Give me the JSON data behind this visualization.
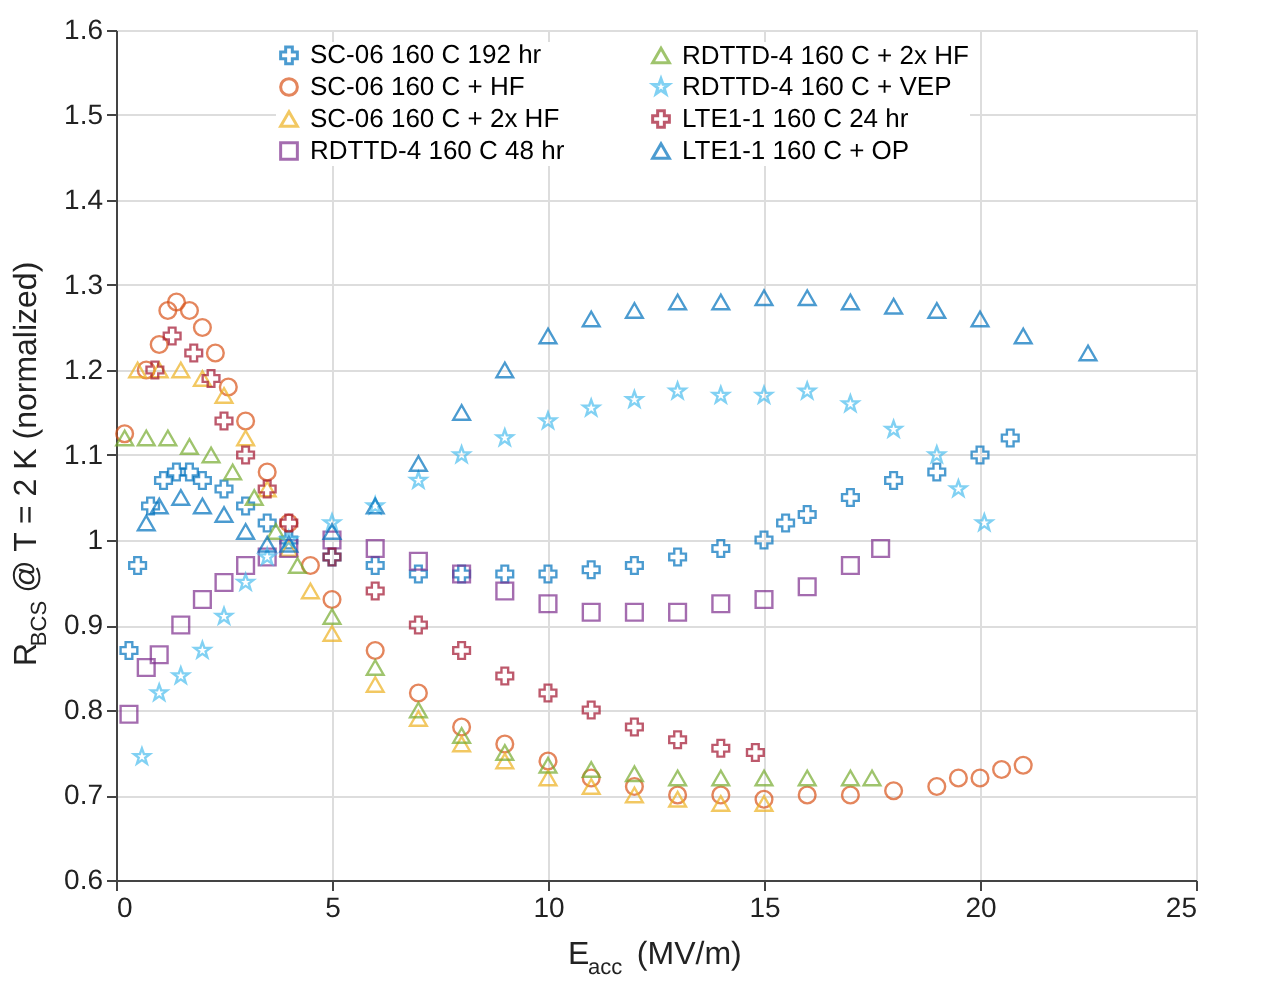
{
  "chart_data": {
    "type": "scatter",
    "xlabel": "E$_{acc}$ (MV/m)",
    "ylabel": "R$_{BCS}$ @ T = 2 K (normalized)",
    "xlim": [
      0,
      25
    ],
    "xticks": [
      0,
      5,
      10,
      15,
      20,
      25
    ],
    "ylim": [
      0.6,
      1.6
    ],
    "yticks": [
      0.6,
      0.7,
      0.8,
      0.9,
      1,
      1.1,
      1.2,
      1.3,
      1.4,
      1.5,
      1.6
    ],
    "grid": true,
    "legend": "top",
    "series": [
      {
        "name": "SC-06 160 C 192 hr",
        "color": "#0072bd",
        "marker": "cross",
        "x": [
          0.3,
          0.5,
          0.8,
          1.1,
          1.4,
          1.7,
          2,
          2.5,
          3,
          3.5,
          4,
          5,
          6,
          7,
          8,
          9,
          10,
          11,
          12,
          13,
          14,
          15,
          15.5,
          16,
          17,
          18,
          19,
          20,
          20.7
        ],
        "values": [
          0.87,
          0.97,
          1.04,
          1.07,
          1.08,
          1.08,
          1.07,
          1.06,
          1.04,
          1.02,
          1.0,
          0.98,
          0.97,
          0.96,
          0.96,
          0.96,
          0.96,
          0.965,
          0.97,
          0.98,
          0.99,
          1.0,
          1.02,
          1.03,
          1.05,
          1.07,
          1.08,
          1.1,
          1.12
        ]
      },
      {
        "name": "SC-06 160 C + HF",
        "color": "#d95319",
        "marker": "circle",
        "x": [
          0.2,
          0.7,
          1.0,
          1.2,
          1.4,
          1.7,
          2.0,
          2.3,
          2.6,
          3.0,
          3.5,
          4,
          4.5,
          5,
          6,
          7,
          8,
          9,
          10,
          11,
          12,
          13,
          14,
          15,
          16,
          17,
          18,
          19,
          19.5,
          20,
          20.5,
          21
        ],
        "values": [
          1.125,
          1.2,
          1.23,
          1.27,
          1.28,
          1.27,
          1.25,
          1.22,
          1.18,
          1.14,
          1.08,
          1.02,
          0.97,
          0.93,
          0.87,
          0.82,
          0.78,
          0.76,
          0.74,
          0.72,
          0.71,
          0.7,
          0.7,
          0.695,
          0.7,
          0.7,
          0.705,
          0.71,
          0.72,
          0.72,
          0.73,
          0.735
        ]
      },
      {
        "name": "SC-06 160 C + 2x HF",
        "color": "#edb120",
        "marker": "triangle",
        "x": [
          0.5,
          1.0,
          1.5,
          2,
          2.5,
          3,
          3.5,
          4,
          4.5,
          5,
          6,
          7,
          8,
          9,
          10,
          11,
          12,
          13,
          14,
          15
        ],
        "values": [
          1.2,
          1.2,
          1.2,
          1.19,
          1.17,
          1.12,
          1.06,
          0.99,
          0.94,
          0.89,
          0.83,
          0.79,
          0.76,
          0.74,
          0.72,
          0.71,
          0.7,
          0.695,
          0.69,
          0.69
        ]
      },
      {
        "name": "RDTTD-4 160 C 48 hr",
        "color": "#7e2f8e",
        "marker": "square",
        "x": [
          0.3,
          0.7,
          1.0,
          1.5,
          2,
          2.5,
          3,
          3.5,
          4,
          5,
          6,
          7,
          8,
          9,
          10,
          11,
          12,
          13,
          14,
          15,
          16,
          17,
          17.7
        ],
        "values": [
          0.795,
          0.85,
          0.865,
          0.9,
          0.93,
          0.95,
          0.97,
          0.98,
          0.99,
          1.0,
          0.99,
          0.975,
          0.96,
          0.94,
          0.925,
          0.915,
          0.915,
          0.915,
          0.925,
          0.93,
          0.945,
          0.97,
          0.99
        ]
      },
      {
        "name": "RDTTD-4 160 C + 2x HF",
        "color": "#77ac30",
        "marker": "triangle",
        "x": [
          0.2,
          0.7,
          1.2,
          1.7,
          2.2,
          2.7,
          3.2,
          3.7,
          4.2,
          5,
          6,
          7,
          8,
          9,
          10,
          11,
          12,
          13,
          14,
          15,
          16,
          17,
          17.5
        ],
        "values": [
          1.12,
          1.12,
          1.12,
          1.11,
          1.1,
          1.08,
          1.05,
          1.01,
          0.97,
          0.91,
          0.85,
          0.8,
          0.77,
          0.75,
          0.735,
          0.73,
          0.725,
          0.72,
          0.72,
          0.72,
          0.72,
          0.72,
          0.72
        ]
      },
      {
        "name": "RDTTD-4 160 C + VEP",
        "color": "#4dbeee",
        "marker": "star",
        "x": [
          0.6,
          1.0,
          1.5,
          2,
          2.5,
          3,
          3.5,
          4,
          5,
          6,
          7,
          8,
          9,
          10,
          11,
          12,
          13,
          14,
          15,
          16,
          17,
          18,
          19,
          19.5,
          20.1
        ],
        "values": [
          0.745,
          0.82,
          0.84,
          0.87,
          0.91,
          0.95,
          0.98,
          1.0,
          1.02,
          1.04,
          1.07,
          1.1,
          1.12,
          1.14,
          1.155,
          1.165,
          1.175,
          1.17,
          1.17,
          1.175,
          1.16,
          1.13,
          1.1,
          1.06,
          1.02
        ]
      },
      {
        "name": "LTE1-1 160 C 24 hr",
        "color": "#a2142f",
        "marker": "cross",
        "x": [
          0.9,
          1.3,
          1.8,
          2.2,
          2.5,
          3,
          3.5,
          4,
          5,
          6,
          7,
          8,
          9,
          10,
          11,
          12,
          13,
          14,
          14.8
        ],
        "values": [
          1.2,
          1.24,
          1.22,
          1.19,
          1.14,
          1.1,
          1.06,
          1.02,
          0.98,
          0.94,
          0.9,
          0.87,
          0.84,
          0.82,
          0.8,
          0.78,
          0.765,
          0.755,
          0.75
        ]
      },
      {
        "name": "LTE1-1 160 C + OP",
        "color": "#0072bd",
        "marker": "triangle",
        "x": [
          0.7,
          1.0,
          1.5,
          2,
          2.5,
          3,
          3.5,
          4,
          5,
          6,
          7,
          8,
          9,
          10,
          11,
          12,
          13,
          14,
          15,
          16,
          17,
          18,
          19,
          20,
          21,
          22.5
        ],
        "values": [
          1.02,
          1.04,
          1.05,
          1.04,
          1.03,
          1.01,
          0.995,
          0.995,
          1.01,
          1.04,
          1.09,
          1.15,
          1.2,
          1.24,
          1.26,
          1.27,
          1.28,
          1.28,
          1.285,
          1.285,
          1.28,
          1.275,
          1.27,
          1.26,
          1.24,
          1.22
        ]
      }
    ]
  }
}
